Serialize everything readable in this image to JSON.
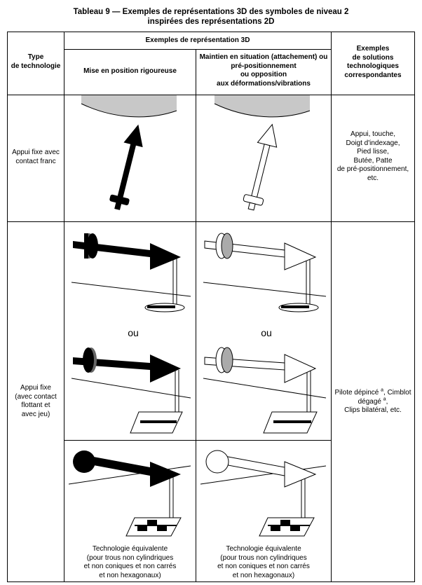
{
  "title_line1": "Tableau 9 — Exemples de représentations 3D des symboles de niveau 2",
  "title_line2": "inspirées des représentations 2D",
  "header": {
    "type_line1": "Type",
    "type_line2": "de technologie",
    "examples_3d": "Exemples de représentation 3D",
    "col_rigorous": "Mise en position rigoureuse",
    "col_maintain_1": "Maintien en situation (attachement) ou",
    "col_maintain_2": "pré-positionnement",
    "col_maintain_3": "ou opposition",
    "col_maintain_4": "aux déformations/vibrations",
    "solutions_1": "Exemples",
    "solutions_2": "de solutions",
    "solutions_3": "technologiques",
    "solutions_4": "correspondantes"
  },
  "row1": {
    "type_1": "Appui fixe avec",
    "type_2": "contact franc",
    "sol_1": "Appui, touche,",
    "sol_2": "Doigt d'indexage,",
    "sol_3": "Pied lisse,",
    "sol_4": "Butée, Patte",
    "sol_5": "de pré-positionnement,",
    "sol_6": "etc."
  },
  "row2": {
    "type_1": "Appui fixe",
    "type_2": "(avec contact",
    "type_3": "flottant et",
    "type_4": "avec jeu)",
    "ou": "ou",
    "sol_1a": "Pilote dépincé ",
    "sol_sup": "a",
    "sol_1b": ", Cimblot",
    "sol_2": "dégagé ",
    "sol_3": "Clips bilatéral, etc.",
    "equiv_1": "Technologie équivalente",
    "equiv_2": "(pour trous non cylindriques",
    "equiv_3": "et non coniques et non carrés",
    "equiv_4": "et non hexagonaux)"
  },
  "colors": {
    "line": "#000000",
    "surface": "#c8c8c8",
    "band": "#888888"
  }
}
